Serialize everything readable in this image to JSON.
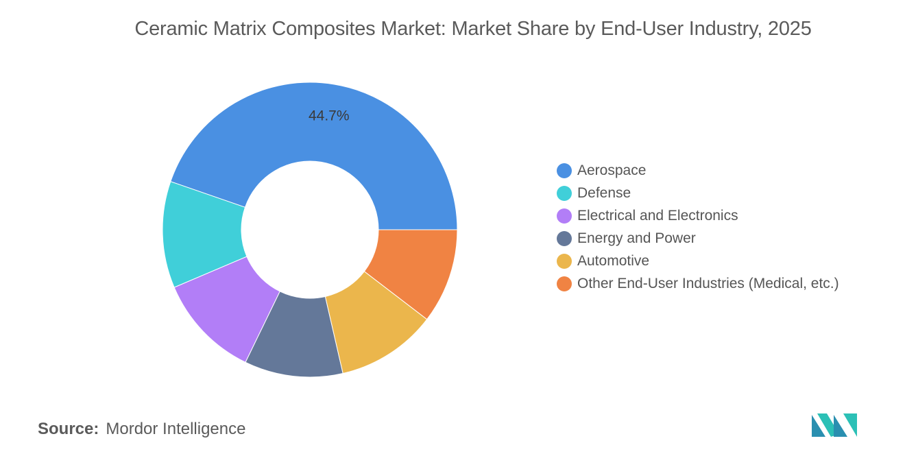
{
  "title": "Ceramic Matrix Composites Market: Market Share by End-User Industry, 2025",
  "source": {
    "label": "Source:",
    "value": "Mordor Intelligence"
  },
  "logo_icon": "mordor-intelligence-logo-icon",
  "chart_data": {
    "type": "pie",
    "variant": "donut",
    "title": "Ceramic Matrix Composites Market: Market Share by End-User Industry, 2025",
    "legend_position": "right",
    "slices": [
      {
        "label": "Aerospace",
        "value": 44.7,
        "color": "#4a90e2",
        "data_label": "44.7%"
      },
      {
        "label": "Defense",
        "value": 11.7,
        "color": "#40cfd9"
      },
      {
        "label": "Electrical and Electronics",
        "value": 11.4,
        "color": "#b27ef7"
      },
      {
        "label": "Energy and Power",
        "value": 10.8,
        "color": "#647899"
      },
      {
        "label": "Automotive",
        "value": 11.0,
        "color": "#ebb64c"
      },
      {
        "label": "Other End-User Industries (Medical, etc.)",
        "value": 10.4,
        "color": "#f08343"
      }
    ]
  }
}
